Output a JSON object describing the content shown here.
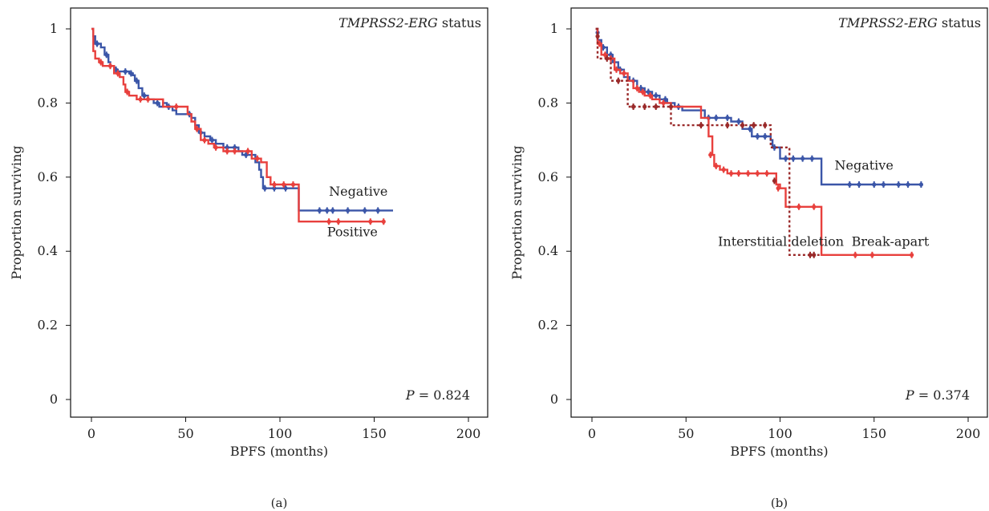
{
  "chart_data": [
    {
      "type": "line",
      "panel_caption": "(a)",
      "title_italic": "TMPRSS2-ERG",
      "title_rest": " status",
      "xlabel": "BPFS (months)",
      "ylabel": "Proportion surviving",
      "xlim": [
        0,
        200
      ],
      "ylim": [
        0,
        1
      ],
      "xticks": [
        0,
        50,
        100,
        150,
        200
      ],
      "yticks": [
        0,
        0.2,
        0.4,
        0.6,
        0.8,
        1
      ],
      "ytick_labels": [
        "0",
        "0.2",
        "0.4",
        "0.6",
        "0.8",
        "1"
      ],
      "p_label": "P",
      "p_value": " = 0.824",
      "grid": false,
      "series": [
        {
          "name": "Negative",
          "color": "#3b56a8",
          "style": "solid",
          "steps": [
            [
              0,
              1
            ],
            [
              1,
              0.98
            ],
            [
              2,
              0.96
            ],
            [
              5,
              0.95
            ],
            [
              7,
              0.93
            ],
            [
              9,
              0.91
            ],
            [
              10,
              0.9
            ],
            [
              12,
              0.89
            ],
            [
              14,
              0.885
            ],
            [
              17,
              0.885
            ],
            [
              20,
              0.88
            ],
            [
              22,
              0.875
            ],
            [
              23,
              0.86
            ],
            [
              25,
              0.84
            ],
            [
              27,
              0.82
            ],
            [
              30,
              0.81
            ],
            [
              33,
              0.8
            ],
            [
              36,
              0.79
            ],
            [
              38,
              0.8
            ],
            [
              40,
              0.79
            ],
            [
              43,
              0.78
            ],
            [
              45,
              0.77
            ],
            [
              47,
              0.77
            ],
            [
              50,
              0.77
            ],
            [
              53,
              0.76
            ],
            [
              55,
              0.74
            ],
            [
              57,
              0.72
            ],
            [
              60,
              0.71
            ],
            [
              63,
              0.7
            ],
            [
              66,
              0.69
            ],
            [
              70,
              0.68
            ],
            [
              75,
              0.68
            ],
            [
              78,
              0.67
            ],
            [
              80,
              0.66
            ],
            [
              85,
              0.66
            ],
            [
              87,
              0.64
            ],
            [
              89,
              0.62
            ],
            [
              90,
              0.6
            ],
            [
              91,
              0.57
            ],
            [
              95,
              0.57
            ],
            [
              99,
              0.57
            ],
            [
              105,
              0.57
            ],
            [
              110,
              0.51
            ],
            [
              160,
              0.51
            ]
          ],
          "censored": [
            [
              3,
              0.96
            ],
            [
              8,
              0.93
            ],
            [
              13,
              0.89
            ],
            [
              18,
              0.885
            ],
            [
              21,
              0.88
            ],
            [
              24,
              0.86
            ],
            [
              28,
              0.82
            ],
            [
              35,
              0.8
            ],
            [
              41,
              0.79
            ],
            [
              52,
              0.77
            ],
            [
              58,
              0.72
            ],
            [
              64,
              0.7
            ],
            [
              72,
              0.68
            ],
            [
              76,
              0.68
            ],
            [
              82,
              0.66
            ],
            [
              92,
              0.57
            ],
            [
              97,
              0.57
            ],
            [
              103,
              0.57
            ],
            [
              121,
              0.51
            ],
            [
              125,
              0.51
            ],
            [
              128,
              0.51
            ],
            [
              136,
              0.51
            ],
            [
              145,
              0.51
            ],
            [
              152,
              0.51
            ]
          ]
        },
        {
          "name": "Positive",
          "color": "#e8403d",
          "style": "solid",
          "steps": [
            [
              0,
              1
            ],
            [
              1,
              0.94
            ],
            [
              2,
              0.92
            ],
            [
              4,
              0.91
            ],
            [
              6,
              0.9
            ],
            [
              9,
              0.9
            ],
            [
              12,
              0.88
            ],
            [
              15,
              0.87
            ],
            [
              17,
              0.85
            ],
            [
              18,
              0.83
            ],
            [
              20,
              0.82
            ],
            [
              24,
              0.81
            ],
            [
              28,
              0.81
            ],
            [
              32,
              0.81
            ],
            [
              38,
              0.79
            ],
            [
              42,
              0.79
            ],
            [
              50,
              0.79
            ],
            [
              51,
              0.77
            ],
            [
              53,
              0.75
            ],
            [
              55,
              0.73
            ],
            [
              58,
              0.7
            ],
            [
              62,
              0.69
            ],
            [
              65,
              0.68
            ],
            [
              70,
              0.67
            ],
            [
              80,
              0.67
            ],
            [
              85,
              0.65
            ],
            [
              90,
              0.64
            ],
            [
              93,
              0.6
            ],
            [
              95,
              0.58
            ],
            [
              100,
              0.58
            ],
            [
              110,
              0.48
            ],
            [
              155,
              0.48
            ]
          ],
          "censored": [
            [
              5,
              0.91
            ],
            [
              10,
              0.9
            ],
            [
              14,
              0.88
            ],
            [
              19,
              0.83
            ],
            [
              26,
              0.81
            ],
            [
              30,
              0.81
            ],
            [
              45,
              0.79
            ],
            [
              56,
              0.73
            ],
            [
              60,
              0.7
            ],
            [
              66,
              0.68
            ],
            [
              72,
              0.67
            ],
            [
              76,
              0.67
            ],
            [
              83,
              0.67
            ],
            [
              88,
              0.65
            ],
            [
              97,
              0.58
            ],
            [
              102,
              0.58
            ],
            [
              107,
              0.58
            ],
            [
              126,
              0.48
            ],
            [
              131,
              0.48
            ],
            [
              148,
              0.48
            ],
            [
              155,
              0.48
            ]
          ]
        }
      ],
      "annotations": [
        {
          "text": "Negative",
          "x": 126,
          "y": 0.55
        },
        {
          "text": "Positive",
          "x": 125,
          "y": 0.44
        }
      ]
    },
    {
      "type": "line",
      "panel_caption": "(b)",
      "title_italic": "TMPRSS2-ERG",
      "title_rest": " status",
      "xlabel": "BPFS (months)",
      "ylabel": "Proportion surviving",
      "xlim": [
        0,
        200
      ],
      "ylim": [
        0,
        1
      ],
      "xticks": [
        0,
        50,
        100,
        150,
        200
      ],
      "yticks": [
        0,
        0.2,
        0.4,
        0.6,
        0.8,
        1
      ],
      "ytick_labels": [
        "0",
        "0.2",
        "0.4",
        "0.6",
        "0.8",
        "1"
      ],
      "p_label": "P",
      "p_value": " = 0.374",
      "grid": false,
      "series": [
        {
          "name": "Negative",
          "color": "#3b56a8",
          "style": "solid",
          "steps": [
            [
              2,
              1
            ],
            [
              3,
              0.97
            ],
            [
              5,
              0.95
            ],
            [
              8,
              0.93
            ],
            [
              11,
              0.91
            ],
            [
              14,
              0.89
            ],
            [
              17,
              0.87
            ],
            [
              20,
              0.86
            ],
            [
              24,
              0.84
            ],
            [
              28,
              0.83
            ],
            [
              32,
              0.82
            ],
            [
              36,
              0.81
            ],
            [
              40,
              0.8
            ],
            [
              44,
              0.79
            ],
            [
              48,
              0.78
            ],
            [
              55,
              0.78
            ],
            [
              60,
              0.76
            ],
            [
              70,
              0.76
            ],
            [
              74,
              0.75
            ],
            [
              80,
              0.73
            ],
            [
              85,
              0.71
            ],
            [
              95,
              0.7
            ],
            [
              96,
              0.68
            ],
            [
              100,
              0.65
            ],
            [
              110,
              0.65
            ],
            [
              122,
              0.58
            ],
            [
              176,
              0.58
            ]
          ],
          "censored": [
            [
              3,
              0.99
            ],
            [
              6,
              0.95
            ],
            [
              10,
              0.93
            ],
            [
              15,
              0.89
            ],
            [
              22,
              0.86
            ],
            [
              26,
              0.84
            ],
            [
              30,
              0.83
            ],
            [
              34,
              0.82
            ],
            [
              39,
              0.81
            ],
            [
              46,
              0.79
            ],
            [
              62,
              0.76
            ],
            [
              66,
              0.76
            ],
            [
              72,
              0.76
            ],
            [
              78,
              0.75
            ],
            [
              84,
              0.73
            ],
            [
              88,
              0.71
            ],
            [
              92,
              0.71
            ],
            [
              97,
              0.68
            ],
            [
              103,
              0.65
            ],
            [
              107,
              0.65
            ],
            [
              112,
              0.65
            ],
            [
              117,
              0.65
            ],
            [
              137,
              0.58
            ],
            [
              142,
              0.58
            ],
            [
              150,
              0.58
            ],
            [
              155,
              0.58
            ],
            [
              163,
              0.58
            ],
            [
              168,
              0.58
            ],
            [
              175,
              0.58
            ]
          ]
        },
        {
          "name": "Break-apart",
          "color": "#e8403d",
          "style": "solid",
          "steps": [
            [
              2,
              1
            ],
            [
              3,
              0.96
            ],
            [
              5,
              0.93
            ],
            [
              8,
              0.92
            ],
            [
              12,
              0.89
            ],
            [
              15,
              0.88
            ],
            [
              19,
              0.86
            ],
            [
              22,
              0.84
            ],
            [
              25,
              0.83
            ],
            [
              28,
              0.82
            ],
            [
              32,
              0.81
            ],
            [
              36,
              0.8
            ],
            [
              42,
              0.79
            ],
            [
              55,
              0.79
            ],
            [
              58,
              0.76
            ],
            [
              62,
              0.71
            ],
            [
              64,
              0.66
            ],
            [
              65,
              0.63
            ],
            [
              68,
              0.62
            ],
            [
              72,
              0.61
            ],
            [
              80,
              0.61
            ],
            [
              95,
              0.61
            ],
            [
              98,
              0.58
            ],
            [
              100,
              0.57
            ],
            [
              103,
              0.52
            ],
            [
              121,
              0.52
            ],
            [
              122,
              0.39
            ],
            [
              171,
              0.39
            ]
          ],
          "censored": [
            [
              4,
              0.96
            ],
            [
              7,
              0.93
            ],
            [
              10,
              0.92
            ],
            [
              13,
              0.89
            ],
            [
              17,
              0.88
            ],
            [
              24,
              0.84
            ],
            [
              27,
              0.83
            ],
            [
              31,
              0.82
            ],
            [
              38,
              0.8
            ],
            [
              63,
              0.66
            ],
            [
              66,
              0.63
            ],
            [
              70,
              0.62
            ],
            [
              74,
              0.61
            ],
            [
              78,
              0.61
            ],
            [
              83,
              0.61
            ],
            [
              88,
              0.61
            ],
            [
              93,
              0.61
            ],
            [
              99,
              0.57
            ],
            [
              110,
              0.52
            ],
            [
              118,
              0.52
            ],
            [
              140,
              0.39
            ],
            [
              149,
              0.39
            ],
            [
              170,
              0.39
            ]
          ]
        },
        {
          "name": "Interstitial deletion",
          "color": "#9a2a2a",
          "style": "dashed",
          "steps": [
            [
              2,
              1
            ],
            [
              3,
              0.92
            ],
            [
              10,
              0.86
            ],
            [
              19,
              0.79
            ],
            [
              42,
              0.74
            ],
            [
              94,
              0.74
            ],
            [
              95,
              0.68
            ],
            [
              105,
              0.39
            ],
            [
              121,
              0.39
            ]
          ],
          "censored": [
            [
              3,
              0.98
            ],
            [
              8,
              0.92
            ],
            [
              14,
              0.86
            ],
            [
              22,
              0.79
            ],
            [
              28,
              0.79
            ],
            [
              34,
              0.79
            ],
            [
              42,
              0.79
            ],
            [
              58,
              0.74
            ],
            [
              72,
              0.74
            ],
            [
              80,
              0.74
            ],
            [
              86,
              0.74
            ],
            [
              92,
              0.74
            ],
            [
              97,
              0.59
            ],
            [
              116,
              0.39
            ],
            [
              118,
              0.39
            ]
          ]
        }
      ],
      "annotations": [
        {
          "text": "Negative",
          "x": 129,
          "y": 0.62
        },
        {
          "text": "Break-apart",
          "x": 138,
          "y": 0.415
        },
        {
          "text": "Interstitial deletion",
          "x": 67,
          "y": 0.415
        }
      ]
    }
  ]
}
